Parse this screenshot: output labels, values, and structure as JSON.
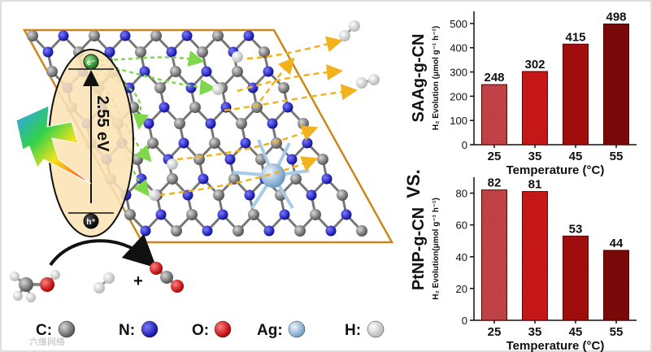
{
  "scheme": {
    "band_gap": "2.55 eV",
    "electron_label": "e⁻",
    "hole_label": "h⁺",
    "plus_sign": "+"
  },
  "legend": [
    {
      "label": "C:",
      "color": "#7a7a7a"
    },
    {
      "label": "N:",
      "color": "#2a2ad6"
    },
    {
      "label": "O:",
      "color": "#e02020"
    },
    {
      "label": "Ag:",
      "color": "#a8cbe8"
    },
    {
      "label": "H:",
      "color": "#f4f4f4"
    }
  ],
  "divider_label": "VS.",
  "watermark": "六维网络",
  "chart_data": [
    {
      "type": "bar",
      "side_label": "SAAg-g-CN",
      "ylabel": "H₂ Evolution (μmol g⁻¹ h⁻¹)",
      "xlabel": "Temperature (°C)",
      "categories": [
        "25",
        "35",
        "45",
        "55"
      ],
      "values": [
        248,
        302,
        415,
        498
      ],
      "ylim": [
        0,
        550
      ],
      "yticks": [
        0,
        100,
        200,
        300,
        400,
        500
      ],
      "colors": [
        "#c8474b",
        "#cf1a1a",
        "#a80f0f",
        "#7e0a0a"
      ]
    },
    {
      "type": "bar",
      "side_label": "PtNP-g-CN",
      "ylabel": "H₂ Evolution(μmol g⁻¹ h⁻¹)",
      "xlabel": "Temperature (°C)",
      "categories": [
        "25",
        "35",
        "45",
        "55"
      ],
      "values": [
        82,
        81,
        53,
        44
      ],
      "ylim": [
        0,
        90
      ],
      "yticks": [
        0,
        20,
        40,
        60,
        80
      ],
      "colors": [
        "#c8474b",
        "#cf1a1a",
        "#a80f0f",
        "#7e0a0a"
      ]
    }
  ]
}
